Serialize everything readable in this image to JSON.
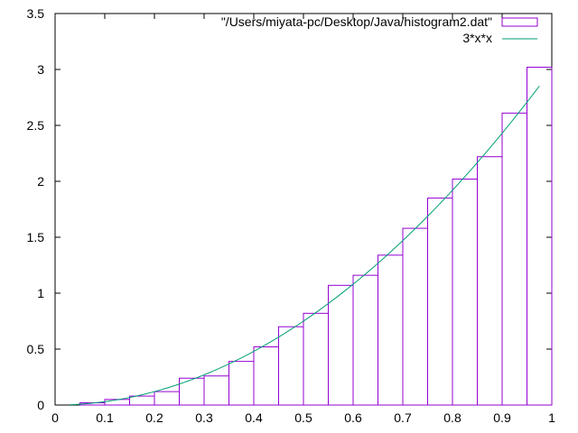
{
  "chart_data": {
    "type": "bar",
    "title": "",
    "xlabel": "",
    "ylabel": "",
    "xlim": [
      0,
      1
    ],
    "ylim": [
      0,
      3.5
    ],
    "xticks": [
      "0",
      "0.1",
      "0.2",
      "0.3",
      "0.4",
      "0.5",
      "0.6",
      "0.7",
      "0.8",
      "0.9",
      "1"
    ],
    "yticks": [
      "0",
      "0.5",
      "1",
      "1.5",
      "2",
      "2.5",
      "3",
      "3.5"
    ],
    "grid": false,
    "legend_position": "top-right",
    "histogram": {
      "name": "\"/Users/miyata-pc/Desktop/Java/histogram2.dat\"",
      "color": "#9400D3",
      "bin_width": 0.05,
      "bin_starts": [
        0.0,
        0.05,
        0.1,
        0.15,
        0.2,
        0.25,
        0.3,
        0.35,
        0.4,
        0.45,
        0.5,
        0.55,
        0.6,
        0.65,
        0.7,
        0.75,
        0.8,
        0.85,
        0.9,
        0.95
      ],
      "values": [
        0.0,
        0.02,
        0.05,
        0.08,
        0.12,
        0.24,
        0.26,
        0.39,
        0.52,
        0.7,
        0.82,
        1.07,
        1.16,
        1.34,
        1.58,
        1.85,
        2.02,
        2.22,
        2.61,
        3.02
      ]
    },
    "curve": {
      "name": "3*x*x",
      "color": "#009E73",
      "x_range": [
        0.03,
        0.975
      ],
      "coefficient": 3
    }
  }
}
